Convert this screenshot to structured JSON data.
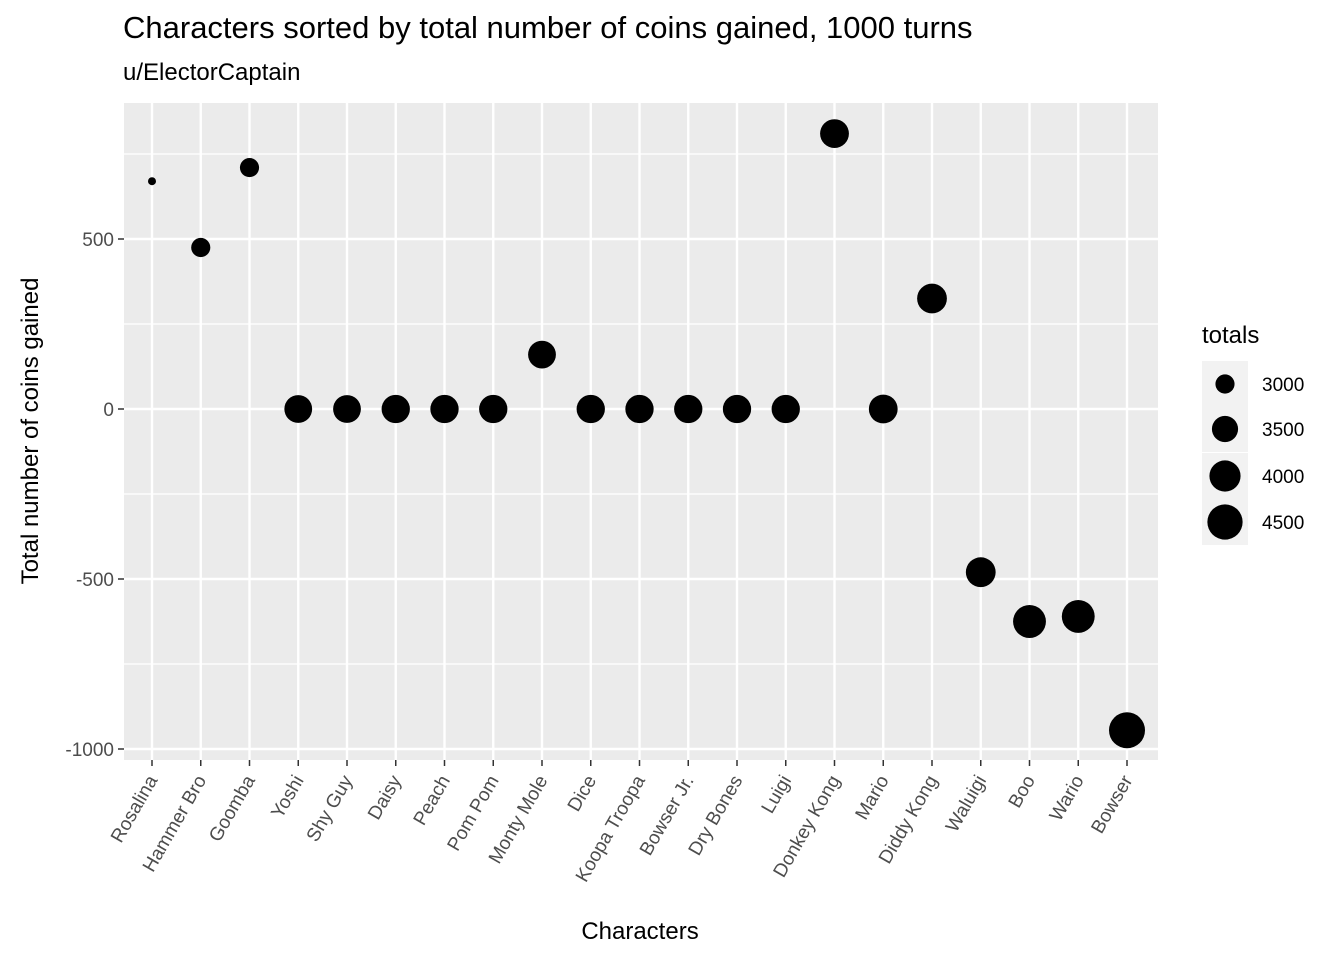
{
  "chart_data": {
    "type": "scatter",
    "title": "Characters sorted by total number of coins gained, 1000 turns",
    "subtitle": "u/ElectorCaptain",
    "xlabel": "Characters",
    "ylabel": "Total number of coins gained",
    "categories": [
      "Rosalina",
      "Hammer Bro",
      "Goomba",
      "Yoshi",
      "Shy Guy",
      "Daisy",
      "Peach",
      "Pom Pom",
      "Monty Mole",
      "Dice",
      "Koopa Troopa",
      "Bowser Jr.",
      "Dry Bones",
      "Luigi",
      "Donkey Kong",
      "Mario",
      "Diddy Kong",
      "Waluigi",
      "Boo",
      "Wario",
      "Bowser"
    ],
    "values": [
      670,
      475,
      710,
      0,
      0,
      0,
      0,
      0,
      160,
      0,
      0,
      0,
      0,
      0,
      810,
      0,
      325,
      -480,
      -625,
      -610,
      -945
    ],
    "totals": [
      2700,
      3000,
      3000,
      3650,
      3650,
      3700,
      3700,
      3700,
      3650,
      3700,
      3700,
      3700,
      3700,
      3700,
      3750,
      3750,
      3850,
      3850,
      4200,
      4200,
      4600
    ],
    "y_ticks": [
      -1000,
      -500,
      0,
      500
    ],
    "ylim": [
      -1000,
      900
    ],
    "grid": true,
    "legend": {
      "title": "totals",
      "placement": "right",
      "values": [
        3000,
        3500,
        4000,
        4500
      ]
    }
  }
}
